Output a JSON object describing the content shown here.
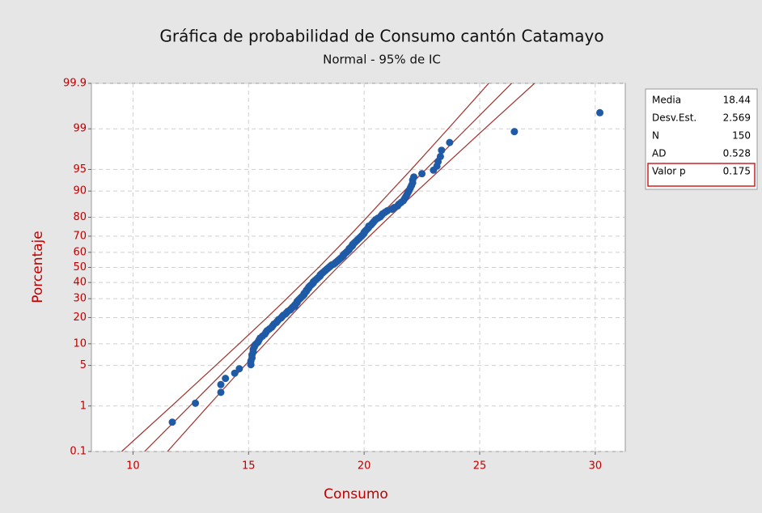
{
  "chart_data": {
    "type": "probability",
    "title": "Gráfica de probabilidad de Consumo cantón Catamayo",
    "subtitle": "Normal - 95% de IC",
    "x_label": "Consumo",
    "y_label": "Porcentaje",
    "y_scale": "normal",
    "xlim": [
      8.2,
      31.3
    ],
    "xticks": [
      10,
      15,
      20,
      25,
      30
    ],
    "ylim": [
      0.1,
      99.9
    ],
    "yticks": [
      0.1,
      1,
      5,
      10,
      20,
      30,
      40,
      50,
      60,
      70,
      80,
      90,
      95,
      99,
      99.9
    ],
    "grid": true,
    "color": "#1f5aa6",
    "line_color": "#a0302a",
    "x": [
      11.7,
      12.7,
      13.8,
      13.8,
      14.0,
      14.4,
      14.6,
      15.1,
      15.1,
      15.15,
      15.15,
      15.2,
      15.2,
      15.25,
      15.3,
      15.4,
      15.45,
      15.5,
      15.6,
      15.7,
      15.75,
      15.8,
      15.9,
      16.0,
      16.05,
      16.1,
      16.2,
      16.25,
      16.3,
      16.4,
      16.45,
      16.5,
      16.6,
      16.65,
      16.7,
      16.8,
      16.85,
      16.9,
      17.0,
      17.0,
      17.05,
      17.1,
      17.1,
      17.15,
      17.2,
      17.25,
      17.3,
      17.35,
      17.4,
      17.4,
      17.45,
      17.5,
      17.5,
      17.55,
      17.6,
      17.6,
      17.65,
      17.7,
      17.75,
      17.8,
      17.8,
      17.85,
      17.9,
      17.95,
      18.0,
      18.05,
      18.1,
      18.1,
      18.15,
      18.2,
      18.25,
      18.3,
      18.35,
      18.4,
      18.45,
      18.5,
      18.55,
      18.6,
      18.7,
      18.75,
      18.8,
      18.85,
      18.9,
      18.95,
      19.0,
      19.05,
      19.1,
      19.1,
      19.15,
      19.2,
      19.25,
      19.3,
      19.35,
      19.35,
      19.4,
      19.45,
      19.5,
      19.5,
      19.55,
      19.6,
      19.65,
      19.7,
      19.75,
      19.8,
      19.85,
      19.9,
      19.95,
      20.0,
      20.0,
      20.05,
      20.1,
      20.15,
      20.2,
      20.2,
      20.3,
      20.35,
      20.4,
      20.45,
      20.5,
      20.6,
      20.7,
      20.75,
      20.8,
      20.9,
      21.0,
      21.2,
      21.3,
      21.45,
      21.5,
      21.6,
      21.7,
      21.75,
      21.8,
      21.85,
      21.9,
      21.95,
      22.0,
      22.05,
      22.1,
      22.1,
      22.15,
      22.5,
      23.0,
      23.15,
      23.2,
      23.3,
      23.35,
      23.7,
      26.5,
      30.2
    ],
    "values": [
      0.47,
      1.13,
      1.8,
      2.46,
      3.12,
      3.79,
      4.45,
      5.12,
      5.78,
      6.45,
      7.11,
      7.78,
      8.44,
      9.11,
      9.77,
      10.44,
      11.1,
      11.77,
      12.43,
      13.1,
      13.76,
      14.43,
      15.09,
      15.76,
      16.42,
      17.09,
      17.75,
      18.42,
      19.08,
      19.75,
      20.41,
      21.08,
      21.74,
      22.41,
      23.07,
      23.74,
      24.4,
      25.07,
      25.73,
      26.4,
      27.06,
      27.73,
      28.39,
      29.06,
      29.72,
      30.39,
      31.05,
      31.72,
      32.38,
      33.05,
      33.71,
      34.38,
      35.04,
      35.71,
      36.37,
      37.03,
      37.7,
      38.36,
      39.03,
      39.69,
      40.36,
      41.02,
      41.69,
      42.35,
      43.02,
      43.68,
      44.35,
      45.01,
      45.68,
      46.34,
      47.01,
      47.67,
      48.34,
      49.0,
      49.67,
      50.33,
      51.0,
      51.66,
      52.33,
      52.99,
      53.66,
      54.32,
      54.99,
      55.65,
      56.32,
      56.98,
      57.65,
      58.31,
      58.98,
      59.64,
      60.31,
      60.97,
      61.64,
      62.3,
      62.97,
      63.63,
      64.3,
      64.96,
      65.63,
      66.29,
      66.96,
      67.62,
      68.28,
      68.95,
      69.61,
      70.28,
      70.94,
      71.61,
      72.27,
      72.94,
      73.6,
      74.27,
      74.93,
      75.6,
      76.26,
      76.93,
      77.59,
      78.26,
      78.92,
      79.59,
      80.25,
      80.92,
      81.58,
      82.25,
      82.91,
      83.58,
      84.24,
      84.91,
      85.57,
      86.24,
      86.9,
      87.57,
      88.23,
      88.9,
      89.56,
      90.23,
      90.89,
      91.56,
      92.22,
      92.89,
      93.55,
      94.22,
      94.88,
      95.54,
      96.21,
      96.87,
      97.54,
      98.2,
      98.87,
      99.53
    ],
    "band_percent": [
      0.1,
      1,
      5,
      10,
      20,
      30,
      50,
      70,
      80,
      90,
      95,
      99,
      99.9
    ],
    "fit_x": [
      10.5,
      12.46,
      14.21,
      15.15,
      16.28,
      17.09,
      18.44,
      19.79,
      20.6,
      21.73,
      22.67,
      24.42,
      26.38
    ],
    "ci_upper_x": [
      9.51,
      11.67,
      13.58,
      14.59,
      15.8,
      16.65,
      18.03,
      19.35,
      20.12,
      21.17,
      22.04,
      23.63,
      25.39
    ],
    "ci_lower_x": [
      11.49,
      13.25,
      14.84,
      15.71,
      16.76,
      17.53,
      18.85,
      20.23,
      21.08,
      22.29,
      23.3,
      25.21,
      27.37
    ],
    "stats": [
      {
        "label": "Media",
        "value": 18.44
      },
      {
        "label": "Desv.Est.",
        "value": 2.569
      },
      {
        "label": "N",
        "value": 150
      },
      {
        "label": "AD",
        "value": 0.528
      },
      {
        "label": "Valor p",
        "value": 0.175
      }
    ]
  }
}
